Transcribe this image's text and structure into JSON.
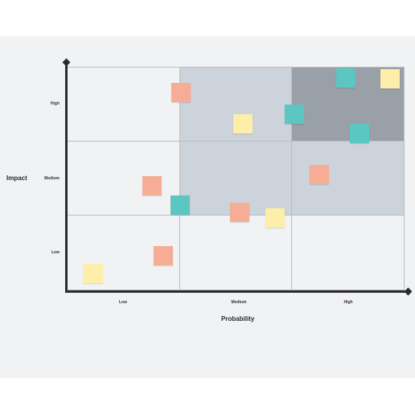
{
  "axes": {
    "x_title": "Probability",
    "y_title": "Impact",
    "x_ticks": [
      "Low",
      "Medium",
      "High"
    ],
    "y_ticks": [
      "High",
      "Medium",
      "Low"
    ]
  },
  "colors": {
    "board": "#f1f2f4",
    "risk_low": "#f1f2f4",
    "risk_medium": "#cdd3da",
    "risk_high": "#9aa0a8",
    "axis": "#2b2b2b",
    "note_yellow": "#fdeeaa",
    "note_salmon": "#f5ad96",
    "note_teal": "#5cc6c3"
  },
  "matrix": {
    "cells": [
      [
        "low",
        "medium",
        "high"
      ],
      [
        "low",
        "medium",
        "medium"
      ],
      [
        "low",
        "low",
        "low"
      ]
    ]
  },
  "notes": [
    {
      "color": "salmon",
      "probability": 1.01,
      "impact": 2.65
    },
    {
      "color": "yellow",
      "probability": 1.56,
      "impact": 2.23
    },
    {
      "color": "teal",
      "probability": 2.02,
      "impact": 2.36
    },
    {
      "color": "teal",
      "probability": 2.48,
      "impact": 2.85
    },
    {
      "color": "yellow",
      "probability": 2.87,
      "impact": 2.84
    },
    {
      "color": "teal",
      "probability": 2.6,
      "impact": 2.1
    },
    {
      "color": "salmon",
      "probability": 2.24,
      "impact": 1.55
    },
    {
      "color": "salmon",
      "probability": 0.75,
      "impact": 1.4
    },
    {
      "color": "teal",
      "probability": 1.0,
      "impact": 1.14
    },
    {
      "color": "salmon",
      "probability": 1.53,
      "impact": 1.05
    },
    {
      "color": "yellow",
      "probability": 1.85,
      "impact": 0.97
    },
    {
      "color": "salmon",
      "probability": 0.85,
      "impact": 0.46
    },
    {
      "color": "yellow",
      "probability": 0.23,
      "impact": 0.23
    }
  ]
}
